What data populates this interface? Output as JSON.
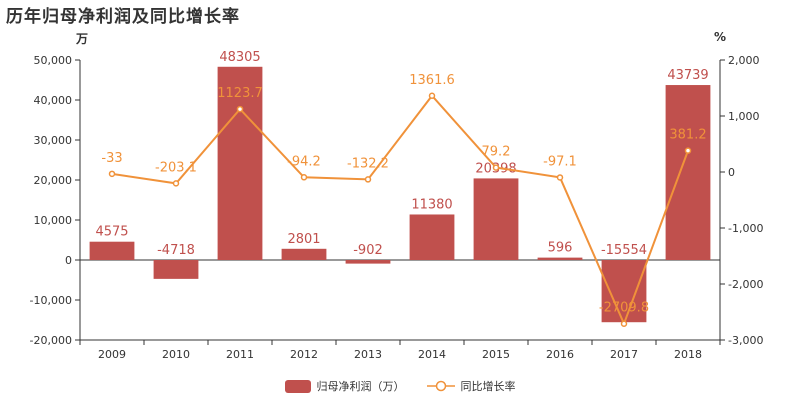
{
  "title": "历年归母净利润及同比增长率",
  "left_unit": "万",
  "right_unit": "%",
  "colors": {
    "bar": "#c0504d",
    "line": "#f0923a"
  },
  "chart_data": {
    "type": "bar",
    "categories": [
      "2009",
      "2010",
      "2011",
      "2012",
      "2013",
      "2014",
      "2015",
      "2016",
      "2017",
      "2018"
    ],
    "series": [
      {
        "name": "归母净利润（万）",
        "type": "bar",
        "axis": "left",
        "values": [
          4575,
          -4718,
          48305,
          2801,
          -902,
          11380,
          20398,
          596,
          -15554,
          43739
        ]
      },
      {
        "name": "同比增长率",
        "type": "line",
        "axis": "right",
        "values": [
          -33,
          -203.1,
          1123.7,
          -94.2,
          -132.2,
          1361.6,
          79.2,
          -97.1,
          -2709.8,
          381.2
        ]
      }
    ],
    "left_axis": {
      "range": [
        -20000,
        50000
      ],
      "ticks": [
        -20000,
        -10000,
        0,
        10000,
        20000,
        30000,
        40000,
        50000
      ],
      "tick_labels": [
        "-20,000",
        "-10,000",
        "0",
        "10,000",
        "20,000",
        "30,000",
        "40,000",
        "50,000"
      ]
    },
    "right_axis": {
      "range": [
        -3000,
        2000
      ],
      "ticks": [
        -3000,
        -2000,
        -1000,
        0,
        1000,
        2000
      ],
      "tick_labels": [
        "-3,000",
        "-2,000",
        "-1,000",
        "0",
        "1,000",
        "2,000"
      ]
    },
    "legend_position": "bottom-center",
    "grid": false
  }
}
